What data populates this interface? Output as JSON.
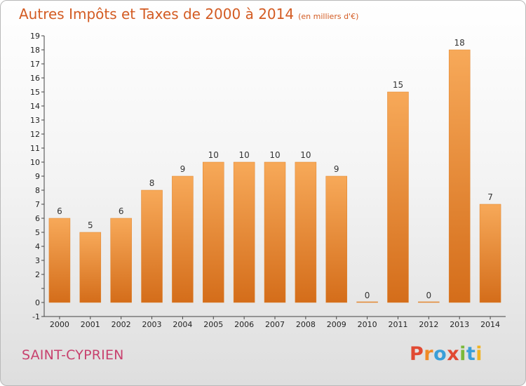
{
  "header": {
    "title": "Autres Impôts et Taxes de 2000 à 2014",
    "unit": "(en milliers d'€)"
  },
  "footer": {
    "commune": "SAINT-CYPRIEN",
    "logo": "Proxiti"
  },
  "colors": {
    "title": "#d35b22",
    "commune": "#c8416e",
    "bar_light": "#f7a959",
    "bar_dark": "#d46d1a",
    "logo_letters": [
      "#e14a33",
      "#f08a24",
      "#3a9fd8",
      "#e14a33",
      "#7ab93a",
      "#3a9fd8",
      "#f0b323"
    ]
  },
  "chart_data": {
    "type": "bar",
    "title": "Autres Impôts et Taxes de 2000 à 2014",
    "subtitle": "(en milliers d'€)",
    "xlabel": "",
    "ylabel": "",
    "categories": [
      "2000",
      "2001",
      "2002",
      "2003",
      "2004",
      "2005",
      "2006",
      "2007",
      "2008",
      "2009",
      "2010",
      "2011",
      "2012",
      "2013",
      "2014"
    ],
    "values": [
      6,
      5,
      6,
      8,
      9,
      10,
      10,
      10,
      10,
      9,
      0,
      15,
      0,
      18,
      7
    ],
    "ylim": [
      -1,
      19
    ],
    "y_ticks": [
      "-1",
      "0",
      "",
      "2",
      "3",
      "4",
      "5",
      "6",
      "7",
      "8",
      "9",
      "10",
      "11",
      "12",
      "13",
      "14",
      "15",
      "16",
      "17",
      "18",
      "19"
    ],
    "grid": false,
    "legend": "none"
  }
}
